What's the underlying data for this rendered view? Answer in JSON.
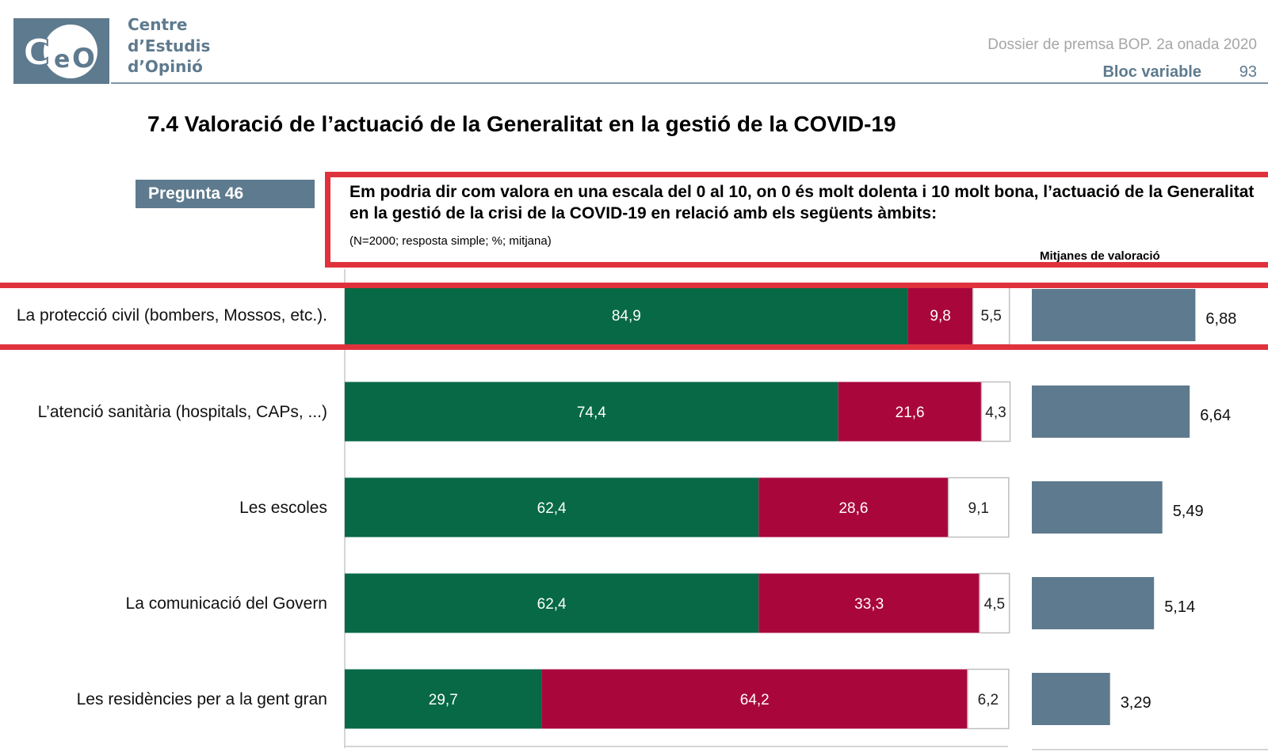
{
  "header": {
    "logo_text": "CeO",
    "org_name_lines": [
      "Centre",
      "d’Estudis",
      "d’Opinió"
    ],
    "dossier": "Dossier de premsa BOP. 2a onada 2020",
    "bloc": "Bloc variable",
    "page_number": "93"
  },
  "section_title": "7.4 Valoració de l’actuació de la Generalitat en la gestió de la COVID-19",
  "question": {
    "badge": "Pregunta 46",
    "text": "Em podria dir com valora en una escala del 0 al 10, on 0 és molt dolenta i 10 molt bona, l’actuació de la Generalitat en la gestió de la crisi de la COVID-19 en relació amb  els següents àmbits:",
    "note": "(N=2000; resposta simple; %; mitjana)"
  },
  "averages_title": "Mitjanes de valoració",
  "colors": {
    "green": "#076946",
    "red": "#a9073c",
    "avg_bar": "#5e7a8e",
    "highlight": "#e0323c"
  },
  "chart_data": {
    "type": "bar",
    "orientation": "horizontal",
    "stacked": true,
    "categories": [
      "La protecció civil (bombers, Mossos, etc.).",
      "L’atenció sanitària (hospitals, CAPs, ...)",
      "Les escoles",
      "La comunicació del Govern",
      "Les residències per a la gent gran"
    ],
    "series": [
      {
        "color": "#076946",
        "values": [
          84.9,
          74.4,
          62.4,
          62.4,
          29.7
        ],
        "labels": [
          "84,9",
          "74,4",
          "62,4",
          "62,4",
          "29,7"
        ]
      },
      {
        "color": "#a9073c",
        "values": [
          9.8,
          21.6,
          28.6,
          33.3,
          64.2
        ],
        "labels": [
          "9,8",
          "21,6",
          "28,6",
          "33,3",
          "64,2"
        ]
      },
      {
        "color": "#ffffff",
        "values": [
          5.5,
          4.3,
          9.1,
          4.5,
          6.2
        ],
        "labels": [
          "5,5",
          "4,3",
          "9,1",
          "4,5",
          "6,2"
        ]
      }
    ],
    "averages": {
      "title": "Mitjanes de valoració",
      "values": [
        6.88,
        6.64,
        5.49,
        5.14,
        3.29
      ],
      "labels": [
        "6,88",
        "6,64",
        "5,49",
        "5,14",
        "3,29"
      ]
    },
    "xlim": [
      0,
      100
    ],
    "grid": false,
    "highlighted_category": "La protecció civil (bombers, Mossos, etc.)."
  }
}
